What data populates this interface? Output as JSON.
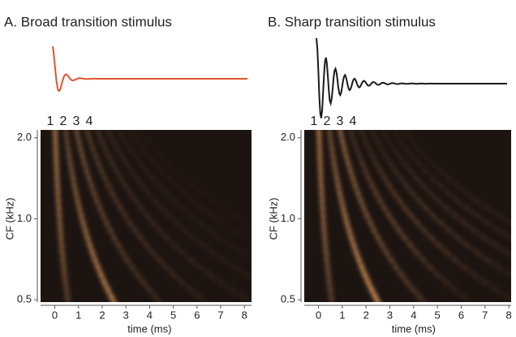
{
  "chart_data": [
    {
      "type": "heatmap",
      "title": "A. Broad transition stimulus",
      "annotations": [
        "1",
        "2",
        "3",
        "4"
      ],
      "xlabel": "time (ms)",
      "ylabel": "CF (kHz)",
      "xlim": [
        -0.6,
        8.3
      ],
      "xticks": [
        0,
        1,
        2,
        3,
        4,
        5,
        6,
        7,
        8
      ],
      "ylim": [
        0.49,
        2.14
      ],
      "yticks": [
        {
          "value": 2,
          "label": "2.0"
        },
        {
          "value": 1,
          "label": "1.0"
        },
        0.5
      ],
      "log_y": true,
      "waveform_color": "#e2552e"
    },
    {
      "type": "heatmap",
      "title": "B. Sharp transition stimulus",
      "annotations": [
        "1",
        "2",
        "3",
        "4"
      ],
      "xlabel": "time (ms)",
      "ylabel": "CF (kHz)",
      "xlim": [
        -0.6,
        8.1
      ],
      "xticks": [
        0,
        1,
        2,
        3,
        4,
        5,
        6,
        7,
        8
      ],
      "ylim": [
        0.49,
        2.14
      ],
      "yticks": [
        {
          "value": 2,
          "label": "2.0"
        },
        {
          "value": 1,
          "label": "1.0"
        },
        0.5
      ],
      "log_y": true,
      "waveform_color": "#1a1a1a"
    }
  ]
}
